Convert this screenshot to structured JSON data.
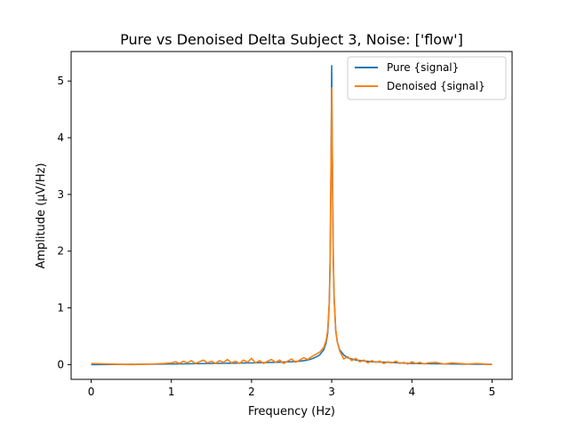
{
  "chart_data": {
    "type": "line",
    "title": "Pure vs Denoised Delta Subject 3, Noise: ['flow']",
    "xlabel": "Frequency (Hz)",
    "ylabel": "Amplitude (μV/Hz)",
    "xlim": [
      -0.25,
      5.25
    ],
    "ylim": [
      -0.26,
      5.52
    ],
    "xticks": [
      0,
      1,
      2,
      3,
      4,
      5
    ],
    "xtick_labels": [
      "0",
      "1",
      "2",
      "3",
      "4",
      "5"
    ],
    "yticks": [
      0,
      1,
      2,
      3,
      4,
      5
    ],
    "ytick_labels": [
      "0",
      "1",
      "2",
      "3",
      "4",
      "5"
    ],
    "grid": false,
    "legend_position": "upper right",
    "series": [
      {
        "name": "Pure {signal}",
        "color": "#1f77b4",
        "x": [
          0,
          0.5,
          1.0,
          1.5,
          2.0,
          2.3,
          2.5,
          2.6,
          2.7,
          2.75,
          2.8,
          2.85,
          2.9,
          2.93,
          2.95,
          2.97,
          2.98,
          2.99,
          3.0,
          3.01,
          3.02,
          3.03,
          3.05,
          3.07,
          3.1,
          3.15,
          3.2,
          3.3,
          3.5,
          3.7,
          4.0,
          4.5,
          5.0
        ],
        "y": [
          0.0,
          0.005,
          0.01,
          0.02,
          0.03,
          0.04,
          0.05,
          0.06,
          0.08,
          0.1,
          0.13,
          0.17,
          0.26,
          0.38,
          0.55,
          1.1,
          1.8,
          3.2,
          5.27,
          3.2,
          1.8,
          1.2,
          0.6,
          0.4,
          0.26,
          0.17,
          0.12,
          0.08,
          0.05,
          0.04,
          0.02,
          0.01,
          0.005
        ]
      },
      {
        "name": "Denoised {signal}",
        "color": "#ff7f0e",
        "x": [
          0,
          0.25,
          0.5,
          0.75,
          0.9,
          1.0,
          1.05,
          1.1,
          1.15,
          1.2,
          1.25,
          1.3,
          1.35,
          1.4,
          1.45,
          1.5,
          1.55,
          1.6,
          1.65,
          1.7,
          1.75,
          1.8,
          1.85,
          1.9,
          1.95,
          2.0,
          2.05,
          2.1,
          2.15,
          2.2,
          2.25,
          2.3,
          2.35,
          2.4,
          2.45,
          2.5,
          2.55,
          2.6,
          2.65,
          2.7,
          2.75,
          2.8,
          2.85,
          2.9,
          2.93,
          2.95,
          2.97,
          2.98,
          2.99,
          3.0,
          3.01,
          3.02,
          3.03,
          3.05,
          3.07,
          3.1,
          3.15,
          3.2,
          3.25,
          3.3,
          3.35,
          3.4,
          3.45,
          3.5,
          3.55,
          3.6,
          3.65,
          3.7,
          3.75,
          3.8,
          3.85,
          3.9,
          3.95,
          4.0,
          4.05,
          4.1,
          4.15,
          4.2,
          4.3,
          4.4,
          4.5,
          4.6,
          4.7,
          4.8,
          4.9,
          5.0
        ],
        "y": [
          0.02,
          0.01,
          0.0,
          0.01,
          0.02,
          0.03,
          0.05,
          0.02,
          0.06,
          0.03,
          0.07,
          0.02,
          0.05,
          0.08,
          0.03,
          0.06,
          0.02,
          0.07,
          0.04,
          0.09,
          0.03,
          0.06,
          0.02,
          0.08,
          0.04,
          0.11,
          0.03,
          0.07,
          0.02,
          0.06,
          0.09,
          0.04,
          0.08,
          0.02,
          0.06,
          0.1,
          0.04,
          0.08,
          0.12,
          0.09,
          0.14,
          0.18,
          0.22,
          0.3,
          0.42,
          0.6,
          1.1,
          1.9,
          3.3,
          4.88,
          3.4,
          1.9,
          1.15,
          0.62,
          0.4,
          0.24,
          0.1,
          0.14,
          0.07,
          0.11,
          0.05,
          0.08,
          0.03,
          0.07,
          0.04,
          0.06,
          0.02,
          0.05,
          0.03,
          0.06,
          0.02,
          0.04,
          0.01,
          0.05,
          0.02,
          0.04,
          0.01,
          0.03,
          0.04,
          0.01,
          0.03,
          0.02,
          0.01,
          0.02,
          0.01,
          0.0
        ]
      }
    ]
  }
}
